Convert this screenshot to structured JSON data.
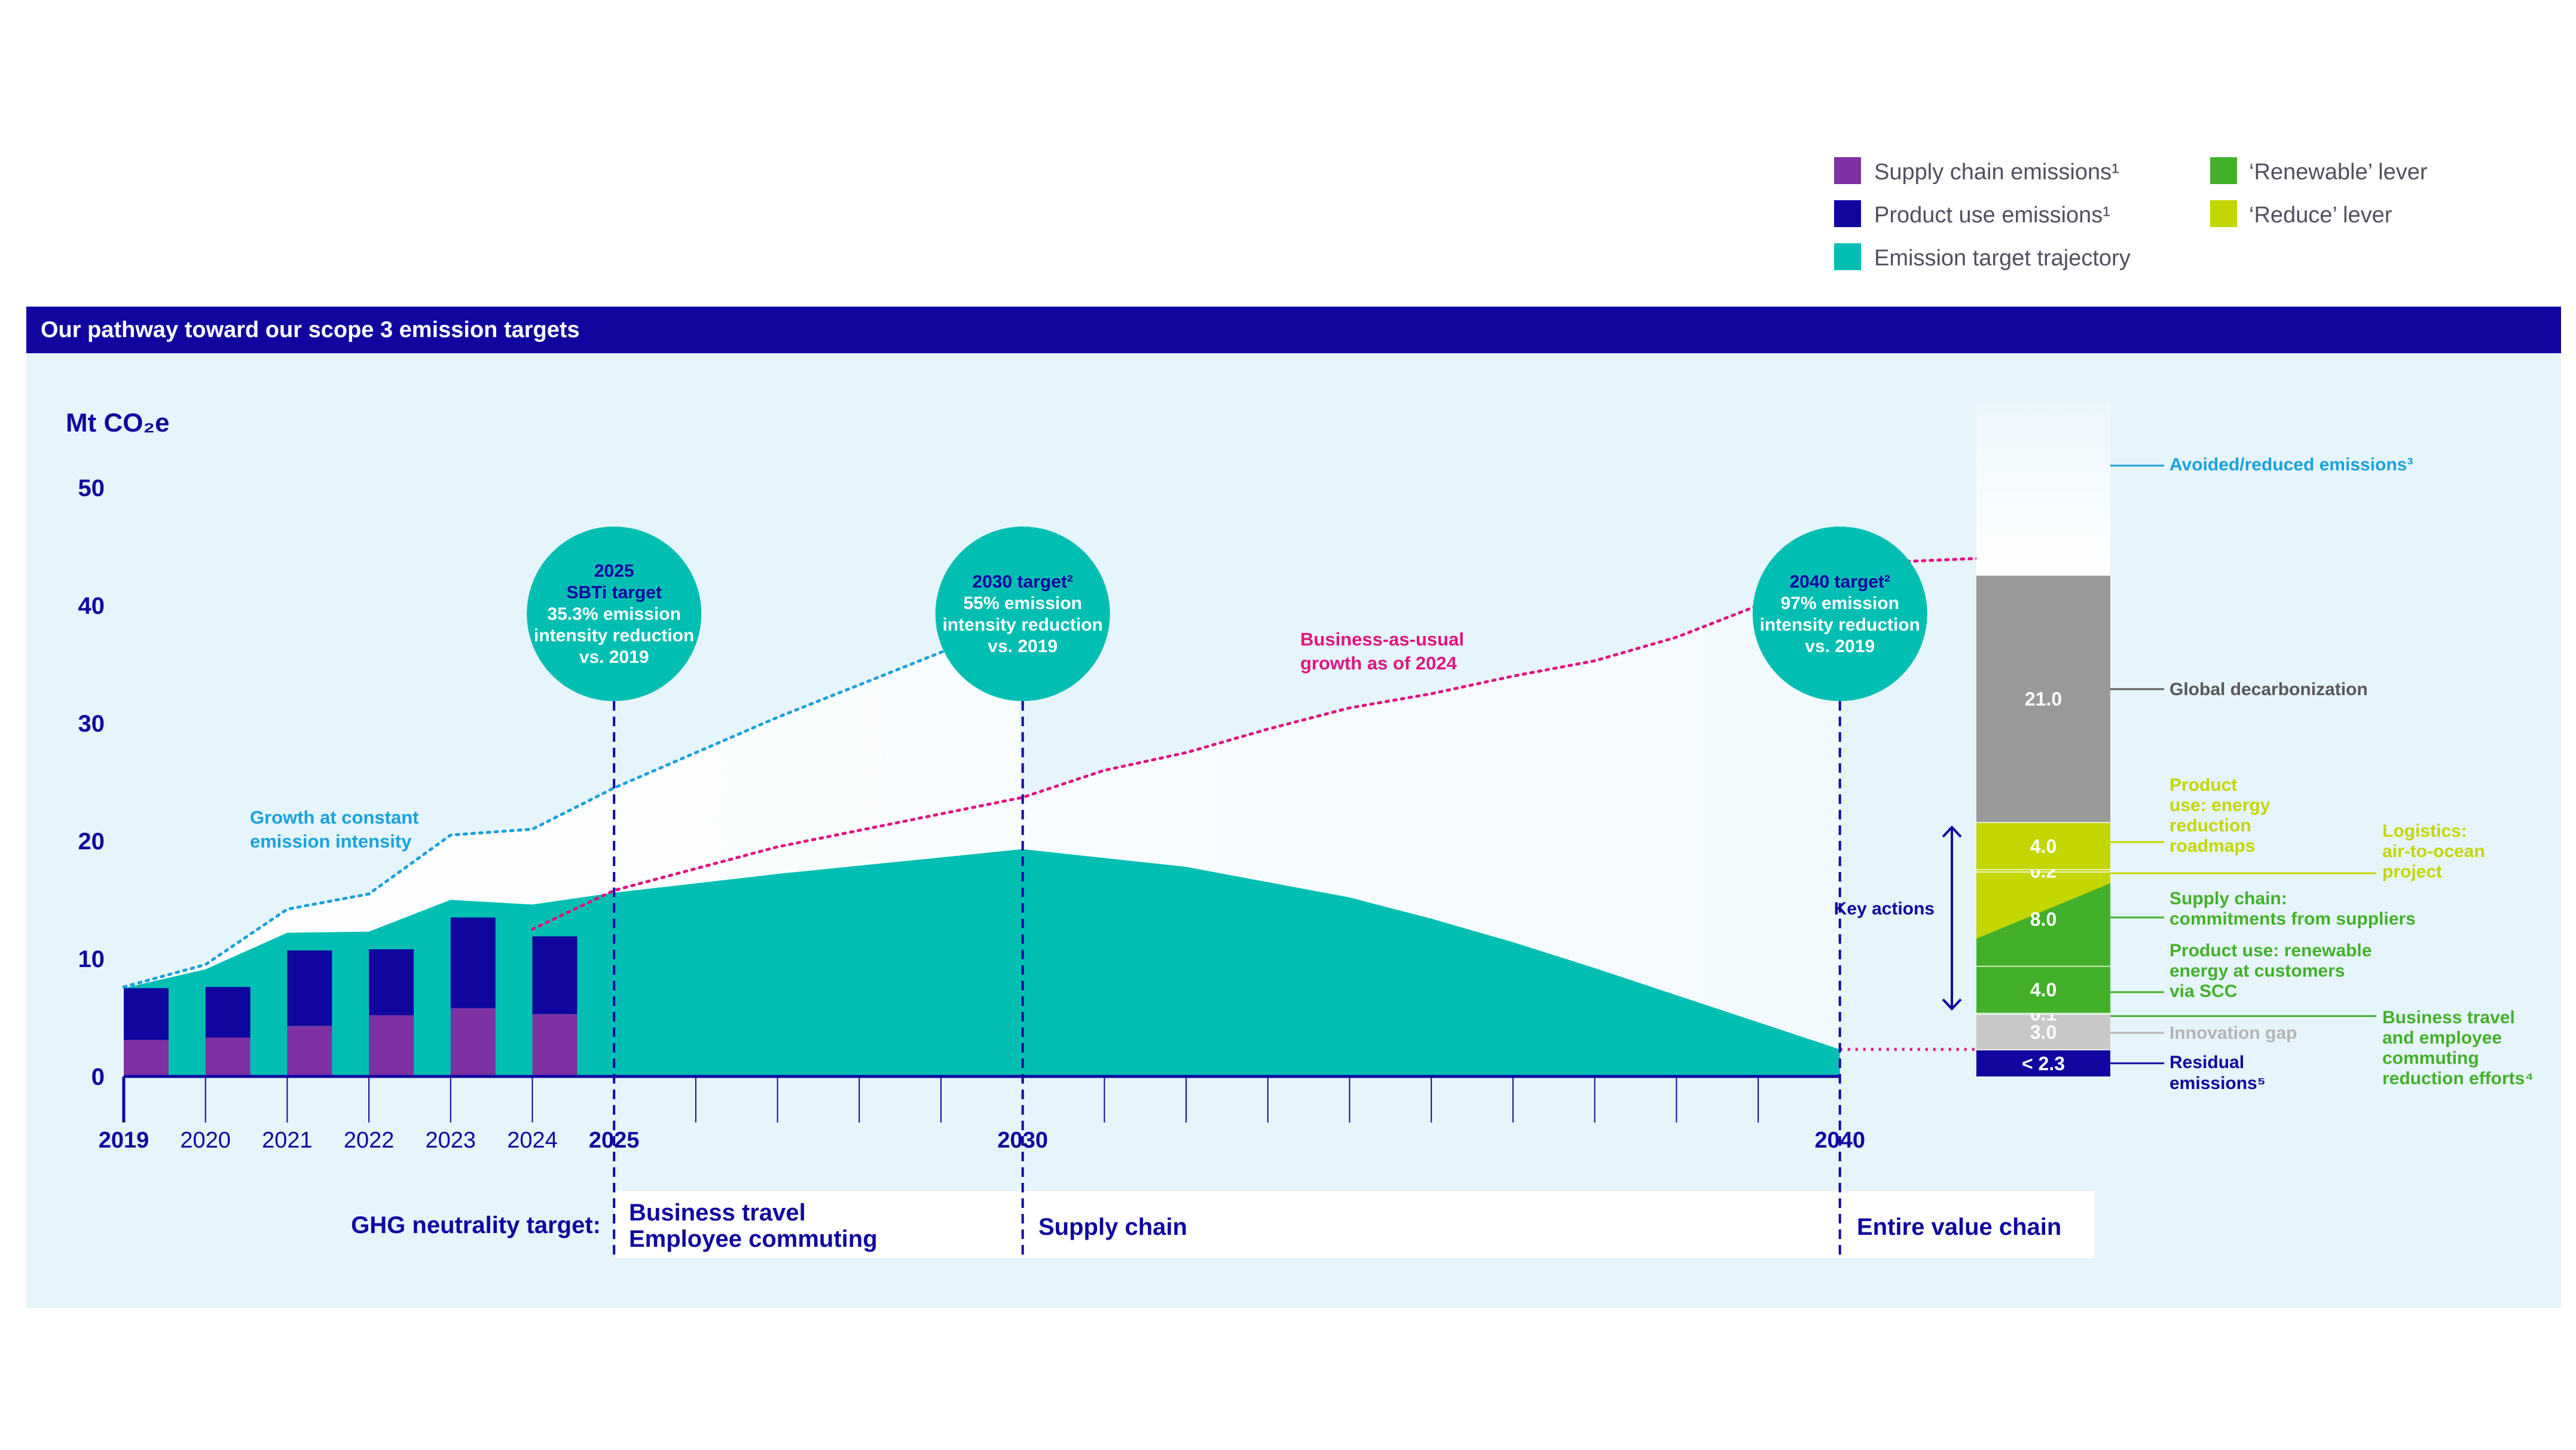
{
  "legend": {
    "items": [
      {
        "label": "Supply chain emissions¹",
        "color": "#7d31a3"
      },
      {
        "label": "Product use emissions¹",
        "color": "#10069f"
      },
      {
        "label": "Emission target trajectory",
        "color": "#00bfb2"
      },
      {
        "label": "‘Renewable’ lever",
        "color": "#43b02a"
      },
      {
        "label": "‘Reduce’ lever",
        "color": "#c4d600"
      }
    ]
  },
  "header": {
    "title": "Our pathway toward our scope 3 emission targets"
  },
  "colors": {
    "navy": "#10069f",
    "teal": "#00bfb2",
    "purple": "#7d31a3",
    "green": "#43b02a",
    "lime": "#c4d600",
    "gray": "#999999",
    "lightgray": "#c8c8c8",
    "panel": "#e6f4fb",
    "cyan": "#1aa1dc",
    "magenta": "#e0137f"
  },
  "chart_data": {
    "type": "bar+area",
    "ylabel": "Mt CO₂e",
    "ylim": [
      0,
      50
    ],
    "yticks": [
      "0",
      "10",
      "20",
      "30",
      "40",
      "50"
    ],
    "xticks": [
      {
        "year": 2019,
        "label": "2019",
        "bold": true
      },
      {
        "year": 2020,
        "label": "2020",
        "bold": false
      },
      {
        "year": 2021,
        "label": "2021",
        "bold": false
      },
      {
        "year": 2022,
        "label": "2022",
        "bold": false
      },
      {
        "year": 2023,
        "label": "2023",
        "bold": false
      },
      {
        "year": 2024,
        "label": "2024",
        "bold": false
      },
      {
        "year": 2025,
        "label": "2025",
        "bold": true
      },
      {
        "year": 2030,
        "label": "2030",
        "bold": true
      },
      {
        "year": 2040,
        "label": "2040",
        "bold": true
      }
    ],
    "bars": {
      "years": [
        2019,
        2020,
        2021,
        2022,
        2023,
        2024
      ],
      "series": [
        {
          "name": "Supply chain emissions¹",
          "values": [
            3.1,
            3.3,
            4.3,
            5.2,
            5.8,
            5.3
          ]
        },
        {
          "name": "Product use emissions¹",
          "values": [
            4.4,
            4.3,
            6.4,
            5.6,
            7.7,
            6.6
          ]
        }
      ]
    },
    "trajectory": {
      "name": "Emission target trajectory",
      "x": [
        2019,
        2020,
        2021,
        2022,
        2023,
        2024,
        2025,
        2027,
        2030,
        2032,
        2034,
        2035,
        2036,
        2037,
        2038,
        2039,
        2040
      ],
      "y": [
        7.5,
        9.1,
        12.2,
        12.3,
        15.0,
        14.6,
        15.6,
        17.2,
        19.3,
        17.8,
        15.2,
        13.4,
        11.4,
        9.2,
        6.9,
        4.6,
        2.3
      ]
    },
    "growth_constant_intensity": {
      "label": "Growth at constant emission intensity",
      "x": [
        2019,
        2020,
        2021,
        2022,
        2023,
        2024,
        2025,
        2027,
        2029.9
      ],
      "y": [
        7.6,
        9.5,
        14.2,
        15.5,
        20.5,
        21.0,
        24.5,
        30.5,
        38.5
      ]
    },
    "business_as_usual": {
      "label": "Business-as-usual growth as of 2024",
      "x": [
        2024,
        2025,
        2027,
        2030,
        2031,
        2032,
        2033,
        2034,
        2035,
        2036,
        2037,
        2038,
        2039,
        2040,
        2041.7
      ],
      "y": [
        12.5,
        15.8,
        19.5,
        23.7,
        26.0,
        27.5,
        29.5,
        31.3,
        32.5,
        34.0,
        35.3,
        37.3,
        40.0,
        43.5,
        44.0
      ]
    },
    "targets": [
      {
        "year": 2025,
        "lines": [
          "2025",
          "SBTi target",
          "35.3% emission",
          "intensity reduction",
          "vs. 2019"
        ],
        "heading_lines": 2
      },
      {
        "year": 2030,
        "lines": [
          "2030 target²",
          "55% emission",
          "intensity reduction",
          "vs. 2019"
        ],
        "heading_lines": 1
      },
      {
        "year": 2040,
        "lines": [
          "2040 target²",
          "97% emission",
          "intensity reduction",
          "vs. 2019"
        ],
        "heading_lines": 1
      }
    ],
    "waterfall": {
      "segments": [
        {
          "value_label": "< 2.3",
          "from": 0,
          "to": 2.3,
          "color": "#10069f",
          "label": "Residual emissions⁵"
        },
        {
          "value_label": "3.0",
          "from": 2.3,
          "to": 5.3,
          "color": "#c8c8c8",
          "label": "Innovation gap"
        },
        {
          "value_label": "0.1",
          "from": 5.3,
          "to": 5.4,
          "color": "#43b02a",
          "label": "Business travel and employee commuting reduction efforts⁴"
        },
        {
          "value_label": "4.0",
          "from": 5.4,
          "to": 9.4,
          "color": "#43b02a",
          "label": "Product use: renewable energy at customers via SCC"
        },
        {
          "value_label": "8.0",
          "from": 9.4,
          "to": 17.4,
          "color": "#c4d600",
          "label": "Supply chain: commitments from suppliers"
        },
        {
          "value_label": "0.2",
          "from": 17.4,
          "to": 17.6,
          "color": "#c4d600",
          "label": "Logistics: air-to-ocean project"
        },
        {
          "value_label": "4.0",
          "from": 17.6,
          "to": 21.6,
          "color": "#c4d600",
          "label": "Product use: energy reduction roadmaps"
        },
        {
          "value_label": "21.0",
          "from": 21.6,
          "to": 42.6,
          "color": "#999999",
          "label": "Global decarbonization"
        },
        {
          "value_label": "",
          "from": 42.6,
          "to": 57.5,
          "color": "#ffffff",
          "label": "Avoided/reduced emissions³"
        }
      ],
      "key_actions": "Key actions"
    },
    "annotations": {
      "growth": [
        "Growth at constant",
        "emission intensity"
      ],
      "bau": [
        "Business-as-usual",
        "growth as of 2024"
      ]
    }
  },
  "neutrality": {
    "label": "GHG neutrality target:",
    "phase_2025": [
      "Business travel",
      "Employee commuting"
    ],
    "phase_2030": "Supply chain",
    "phase_2040": "Entire value chain"
  }
}
